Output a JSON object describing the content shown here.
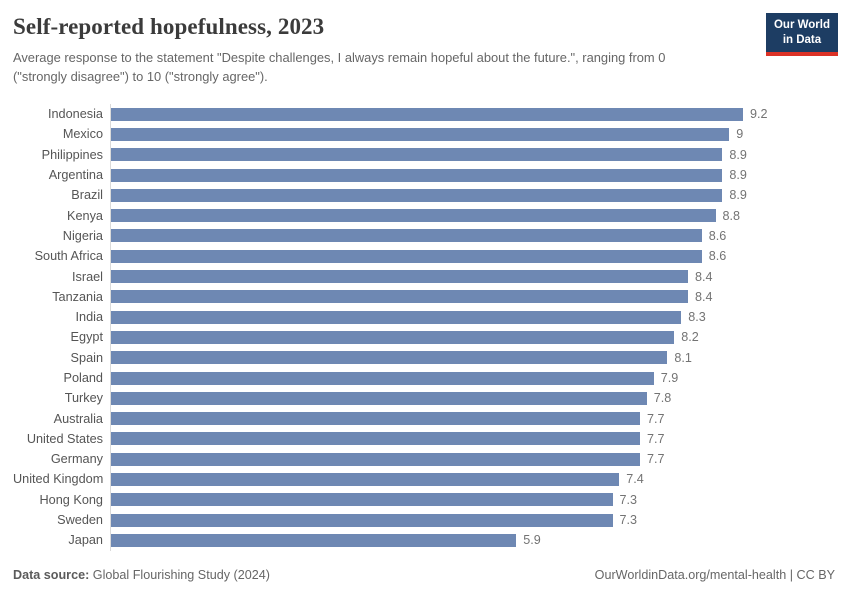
{
  "header": {
    "title": "Self-reported hopefulness, 2023",
    "subtitle": "Average response to the statement \"Despite challenges, I always remain hopeful about the future.\", ranging from 0 (\"strongly disagree\") to 10 (\"strongly agree\")."
  },
  "logo": {
    "line1": "Our World",
    "line2": "in Data",
    "bg_color": "#1d3d63",
    "stripe_color": "#dc3226"
  },
  "chart_data": {
    "type": "bar",
    "orientation": "horizontal",
    "title": "Self-reported hopefulness, 2023",
    "categories": [
      "Indonesia",
      "Mexico",
      "Philippines",
      "Argentina",
      "Brazil",
      "Kenya",
      "Nigeria",
      "South Africa",
      "Israel",
      "Tanzania",
      "India",
      "Egypt",
      "Spain",
      "Poland",
      "Turkey",
      "Australia",
      "United States",
      "Germany",
      "United Kingdom",
      "Hong Kong",
      "Sweden",
      "Japan"
    ],
    "values": [
      9.2,
      9,
      8.9,
      8.9,
      8.9,
      8.8,
      8.6,
      8.6,
      8.4,
      8.4,
      8.3,
      8.2,
      8.1,
      7.9,
      7.8,
      7.7,
      7.7,
      7.7,
      7.4,
      7.3,
      7.3,
      5.9
    ],
    "xlim": [
      0,
      9.2
    ],
    "bar_color": "#6e88b3",
    "grid": false,
    "value_label_position": "right-of-bar",
    "axis_line_color": "#dadada"
  },
  "footer": {
    "source_label": "Data source:",
    "source_value": " Global Flourishing Study (2024)",
    "link": "OurWorldinData.org/mental-health | CC BY"
  }
}
